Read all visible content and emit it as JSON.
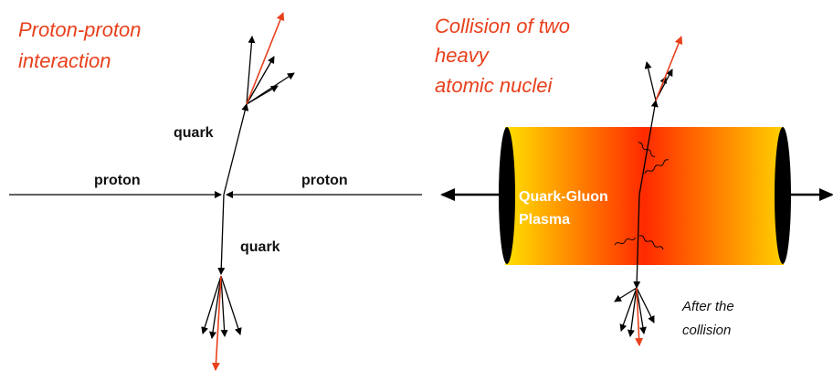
{
  "left": {
    "title": [
      "Proton-proton",
      "interaction"
    ],
    "labels": [
      "quark",
      "proton",
      "proton",
      "quark"
    ]
  },
  "right": {
    "title": [
      "Collision of two",
      "heavy",
      "atomic nuclei"
    ],
    "plasma_label": [
      "Quark-Gluon",
      "Plasma"
    ],
    "note": [
      "After the",
      "collision"
    ]
  }
}
